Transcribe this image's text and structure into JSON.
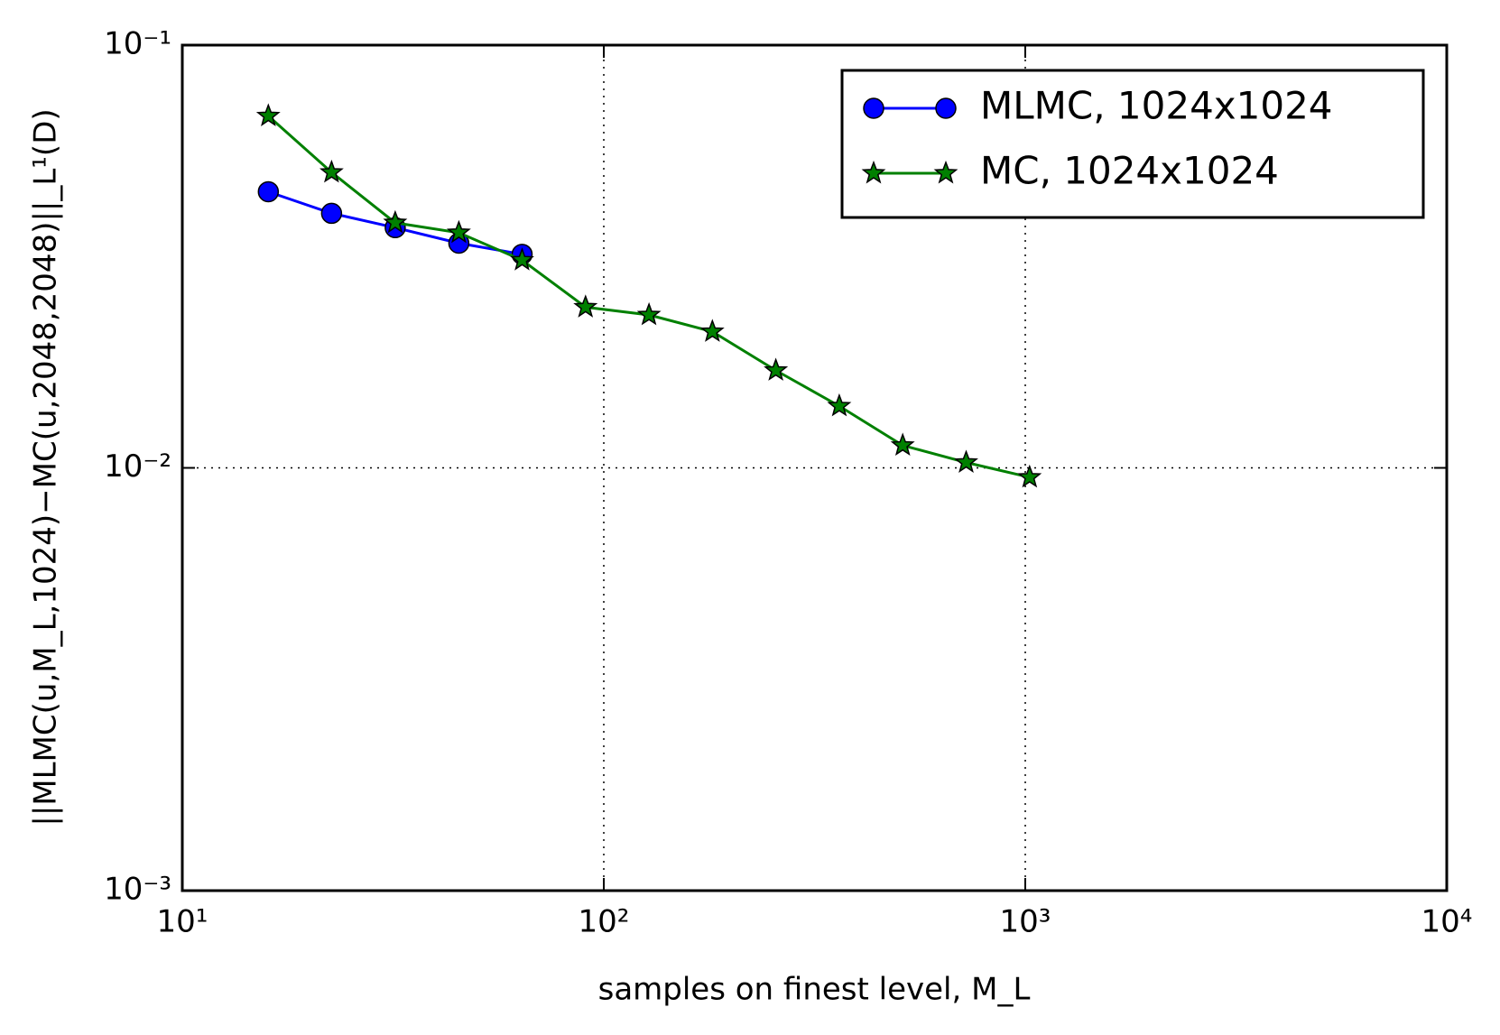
{
  "chart_data": {
    "type": "line",
    "xlabel": "samples on finest level, M_L",
    "ylabel": "||MLMC(u,M_L,1024)−MC(u,2048,2048)||_L¹(D)",
    "log_x": true,
    "log_y": true,
    "grid": true,
    "legend": "upper right",
    "xlim": [
      10,
      10000
    ],
    "xticks": [
      {
        "value": 10,
        "label": "10¹"
      },
      {
        "value": 100,
        "label": "10²"
      },
      {
        "value": 1000,
        "label": "10³"
      },
      {
        "value": 10000,
        "label": "10⁴"
      }
    ],
    "ylim": [
      0.001,
      0.1
    ],
    "yticks": [
      {
        "value": 0.001,
        "label": "10⁻³"
      },
      {
        "value": 0.01,
        "label": "10⁻²"
      },
      {
        "value": 0.1,
        "label": "10⁻¹"
      }
    ],
    "series": [
      {
        "name": "MLMC, 1024x1024",
        "color": "#0000ff",
        "marker": "circle",
        "x": [
          16,
          22.6,
          32,
          45.3,
          64
        ],
        "values": [
          0.045,
          0.04,
          0.037,
          0.034,
          0.032
        ]
      },
      {
        "name": "MC, 1024x1024",
        "color": "#008000",
        "marker": "star",
        "x": [
          16,
          22.6,
          32,
          45.3,
          64,
          90.5,
          128,
          181,
          256,
          362,
          512,
          724,
          1024
        ],
        "values": [
          0.068,
          0.05,
          0.038,
          0.036,
          0.031,
          0.024,
          0.023,
          0.021,
          0.017,
          0.014,
          0.0113,
          0.0103,
          0.0095
        ]
      }
    ]
  }
}
